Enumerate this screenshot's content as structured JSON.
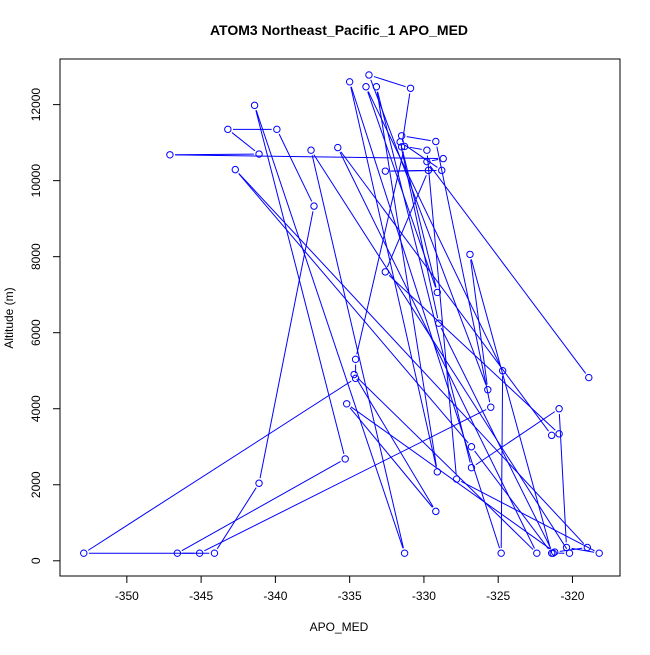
{
  "chart_data": {
    "type": "scatter",
    "title": "ATOM3 Northeast_Pacific_1 APO_MED",
    "xlabel": "APO_MED",
    "ylabel": "Altitude (m)",
    "xlim": [
      -354.5,
      -316.8
    ],
    "ylim": [
      -400,
      13200
    ],
    "x_ticks": [
      -350,
      -345,
      -340,
      -335,
      -330,
      -325,
      -320
    ],
    "y_ticks": [
      0,
      2000,
      4000,
      6000,
      8000,
      10000,
      12000
    ],
    "connected": true,
    "marker": "open-circle",
    "grid": false,
    "legend": "none",
    "series": [
      {
        "color": "#0000ff",
        "points": [
          [
            -318.9,
            4820
          ],
          [
            -329.8,
            10500
          ],
          [
            -328.7,
            10580
          ],
          [
            -347.1,
            10680
          ],
          [
            -341.1,
            10700
          ],
          [
            -343.2,
            11350
          ],
          [
            -339.9,
            11350
          ],
          [
            -337.4,
            9330
          ],
          [
            -341.1,
            2040
          ],
          [
            -344.1,
            200
          ],
          [
            -346.6,
            200
          ],
          [
            -335.3,
            2680
          ],
          [
            -341.4,
            11980
          ],
          [
            -331.3,
            200
          ],
          [
            -337.6,
            10800
          ],
          [
            -320.2,
            200
          ],
          [
            -321.3,
            200
          ],
          [
            -329.0,
            6250
          ],
          [
            -331.6,
            11020
          ],
          [
            -328.8,
            10270
          ],
          [
            -332.6,
            10250
          ],
          [
            -329.7,
            10270
          ],
          [
            -332.6,
            7600
          ],
          [
            -320.9,
            3340
          ],
          [
            -321.4,
            3300
          ],
          [
            -335.8,
            10870
          ],
          [
            -322.4,
            200
          ],
          [
            -334.7,
            4900
          ],
          [
            -329.2,
            1300
          ],
          [
            -335.2,
            4130
          ],
          [
            -321.2,
            230
          ],
          [
            -319.0,
            350
          ],
          [
            -342.7,
            10290
          ],
          [
            -326.8,
            3000
          ],
          [
            -321.4,
            200
          ],
          [
            -326.9,
            8060
          ],
          [
            -325.7,
            4500
          ],
          [
            -333.7,
            12780
          ],
          [
            -330.9,
            12430
          ],
          [
            -331.5,
            10890
          ],
          [
            -329.1,
            7060
          ],
          [
            -333.9,
            12470
          ],
          [
            -324.7,
            5000
          ],
          [
            -324.8,
            200
          ],
          [
            -335.0,
            12600
          ],
          [
            -329.1,
            2340
          ],
          [
            -333.2,
            12470
          ],
          [
            -326.8,
            2450
          ],
          [
            -320.9,
            4000
          ],
          [
            -320.4,
            350
          ],
          [
            -318.2,
            200
          ],
          [
            -327.8,
            2150
          ],
          [
            -329.8,
            10800
          ],
          [
            -331.3,
            10900
          ],
          [
            -334.6,
            5300
          ],
          [
            -334.6,
            4800
          ],
          [
            -352.9,
            200
          ],
          [
            -345.1,
            200
          ],
          [
            -325.5,
            4040
          ],
          [
            -329.2,
            11030
          ],
          [
            -331.5,
            11180
          ]
        ]
      }
    ]
  }
}
